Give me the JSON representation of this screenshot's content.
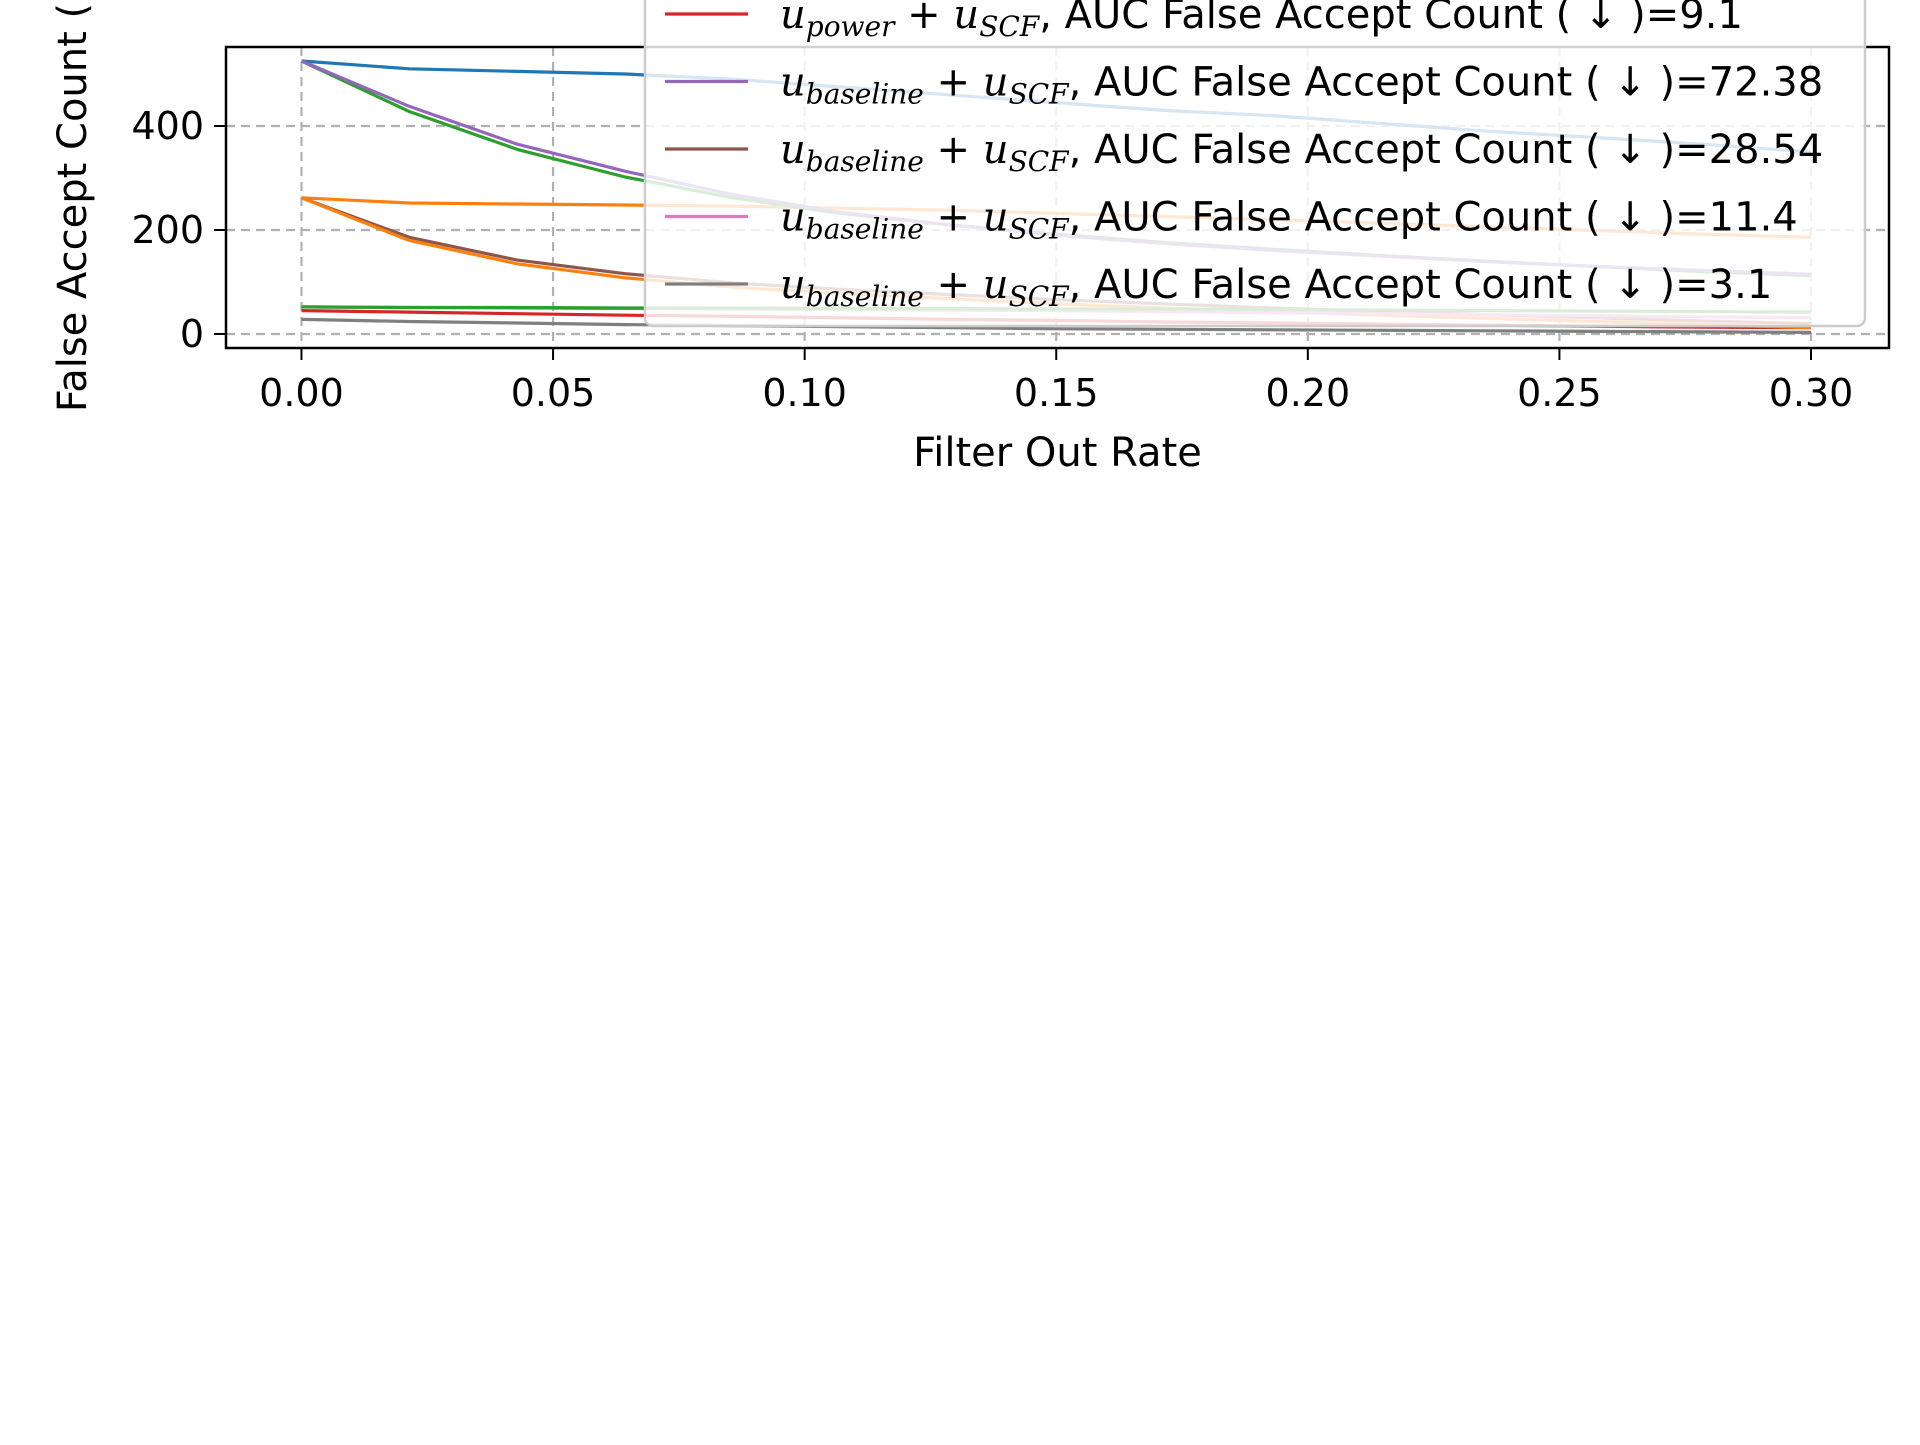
{
  "chart_data": {
    "type": "line",
    "xlabel": "Filter Out Rate",
    "ylabel": "False Accept Count (",
    "xlim": [
      -0.015,
      0.3155
    ],
    "ylim": [
      -27,
      552
    ],
    "xticks": [
      {
        "value": 0.0,
        "label": "0.00"
      },
      {
        "value": 0.05,
        "label": "0.05"
      },
      {
        "value": 0.1,
        "label": "0.10"
      },
      {
        "value": 0.15,
        "label": "0.15"
      },
      {
        "value": 0.2,
        "label": "0.20"
      },
      {
        "value": 0.25,
        "label": "0.25"
      },
      {
        "value": 0.3,
        "label": "0.30"
      }
    ],
    "yticks": [
      {
        "value": 0,
        "label": "0"
      },
      {
        "value": 200,
        "label": "200"
      },
      {
        "value": 400,
        "label": "400"
      }
    ],
    "grid": true,
    "grid_style": "dashed",
    "legend_placement": "upper-right",
    "x": [
      0.0,
      0.0214,
      0.0429,
      0.0643,
      0.0857,
      0.1071,
      0.1286,
      0.15,
      0.1714,
      0.1929,
      0.2143,
      0.2357,
      0.2571,
      0.2786,
      0.3
    ],
    "series": [
      {
        "color": "#1f77b4",
        "values": [
          525,
          510,
          505,
          500,
          490,
          475,
          460,
          445,
          430,
          420,
          405,
          390,
          378,
          365,
          350
        ]
      },
      {
        "color": "#ff7f0e",
        "values": [
          262,
          252,
          250,
          248,
          246,
          242,
          238,
          232,
          226,
          220,
          213,
          206,
          199,
          192,
          186
        ]
      },
      {
        "color": "#2ca02c",
        "values": [
          525,
          428,
          355,
          302,
          262,
          232,
          210,
          192,
          176,
          163,
          151,
          140,
          130,
          120,
          112
        ]
      },
      {
        "color": "#d62728",
        "values": [
          45,
          42,
          39,
          36,
          34,
          31,
          28,
          26,
          23,
          21,
          19,
          17,
          15,
          13,
          12
        ]
      },
      {
        "color": "#9467bd",
        "values": [
          525,
          438,
          365,
          313,
          268,
          234,
          210,
          190,
          174,
          161,
          150,
          139,
          130,
          122,
          115
        ]
      },
      {
        "color": "#8c564b",
        "values": [
          262,
          186,
          142,
          116,
          98,
          86,
          76,
          66,
          58,
          50,
          43,
          37,
          31,
          25,
          20
        ]
      },
      {
        "color": "#ff7f0e",
        "values": [
          262,
          180,
          135,
          108,
          90,
          78,
          68,
          58,
          50,
          43,
          36,
          30,
          24,
          18,
          12
        ]
      },
      {
        "color": "#e377c2",
        "values": [
          52,
          51,
          50,
          49,
          48,
          47,
          46,
          45,
          43,
          41,
          39,
          37,
          35,
          33,
          31
        ]
      },
      {
        "color": "#2ca02c",
        "values": [
          52,
          51,
          51,
          50,
          50,
          49,
          49,
          48,
          48,
          47,
          46,
          45,
          44,
          43,
          42
        ]
      },
      {
        "color": "#7f7f7f",
        "values": [
          28,
          24,
          21,
          18,
          16,
          14,
          12,
          10,
          9,
          8,
          7,
          6,
          5,
          4,
          3
        ]
      }
    ],
    "legend": [
      {
        "color": "#d62728",
        "sym": "u",
        "sub": "power",
        "plus": "+",
        "sym2": "u",
        "sub2": "SCF",
        "text": ", AUC False Accept Count ( ↓ )=9.1"
      },
      {
        "color": "#9467bd",
        "sym": "u",
        "sub": "baseline",
        "plus": "+",
        "sym2": "u",
        "sub2": "SCF",
        "text": ", AUC False Accept Count ( ↓ )=72.38"
      },
      {
        "color": "#8c564b",
        "sym": "u",
        "sub": "baseline",
        "plus": "+",
        "sym2": "u",
        "sub2": "SCF",
        "text": ", AUC False Accept Count ( ↓ )=28.54"
      },
      {
        "color": "#e377c2",
        "sym": "u",
        "sub": "baseline",
        "plus": "+",
        "sym2": "u",
        "sub2": "SCF",
        "text": ", AUC False Accept Count ( ↓ )=11.4"
      },
      {
        "color": "#7f7f7f",
        "sym": "u",
        "sub": "baseline",
        "plus": "+",
        "sym2": "u",
        "sub2": "SCF",
        "text": ", AUC False Accept Count ( ↓ )=3.1"
      }
    ]
  }
}
